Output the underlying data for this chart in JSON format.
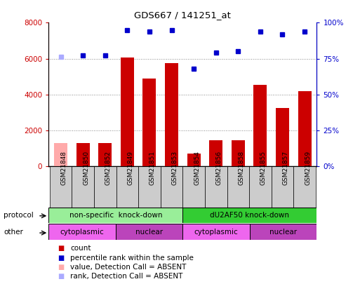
{
  "title": "GDS667 / 141251_at",
  "samples": [
    "GSM21848",
    "GSM21850",
    "GSM21852",
    "GSM21849",
    "GSM21851",
    "GSM21853",
    "GSM21854",
    "GSM21856",
    "GSM21858",
    "GSM21855",
    "GSM21857",
    "GSM21859"
  ],
  "counts": [
    1300,
    1300,
    1300,
    6050,
    4900,
    5750,
    700,
    1450,
    1450,
    4550,
    3250,
    4200
  ],
  "counts_absent": [
    true,
    false,
    false,
    false,
    false,
    false,
    false,
    false,
    false,
    false,
    false,
    false
  ],
  "percentile_ranks": [
    76,
    77,
    77,
    95,
    94,
    95,
    68,
    79,
    80,
    94,
    92,
    94
  ],
  "rank_absent": [
    true,
    false,
    false,
    false,
    false,
    false,
    false,
    false,
    false,
    false,
    false,
    false
  ],
  "bar_color_normal": "#cc0000",
  "bar_color_absent": "#ffaaaa",
  "dot_color_normal": "#0000cc",
  "dot_color_absent": "#aaaaff",
  "ylim_left": [
    0,
    8000
  ],
  "ylim_right": [
    0,
    100
  ],
  "left_yticks": [
    0,
    2000,
    4000,
    6000,
    8000
  ],
  "right_yticks": [
    0,
    25,
    50,
    75,
    100
  ],
  "right_yticklabels": [
    "0%",
    "25%",
    "50%",
    "75%",
    "100%"
  ],
  "grid_values": [
    2000,
    4000,
    6000
  ],
  "grid_color": "#888888",
  "protocol_groups": [
    {
      "label": "non-specific  knock-down",
      "start": 0,
      "end": 6,
      "color": "#99ee99"
    },
    {
      "label": "dU2AF50 knock-down",
      "start": 6,
      "end": 12,
      "color": "#33cc33"
    }
  ],
  "other_groups": [
    {
      "label": "cytoplasmic",
      "start": 0,
      "end": 3,
      "color": "#ee66ee"
    },
    {
      "label": "nuclear",
      "start": 3,
      "end": 6,
      "color": "#bb44bb"
    },
    {
      "label": "cytoplasmic",
      "start": 6,
      "end": 9,
      "color": "#ee66ee"
    },
    {
      "label": "nuclear",
      "start": 9,
      "end": 12,
      "color": "#bb44bb"
    }
  ],
  "legend_items": [
    {
      "label": "count",
      "color": "#cc0000"
    },
    {
      "label": "percentile rank within the sample",
      "color": "#0000cc"
    },
    {
      "label": "value, Detection Call = ABSENT",
      "color": "#ffaaaa"
    },
    {
      "label": "rank, Detection Call = ABSENT",
      "color": "#aaaaff"
    }
  ],
  "bg_color": "#ffffff",
  "col_bg_color": "#cccccc",
  "border_color": "#000000"
}
